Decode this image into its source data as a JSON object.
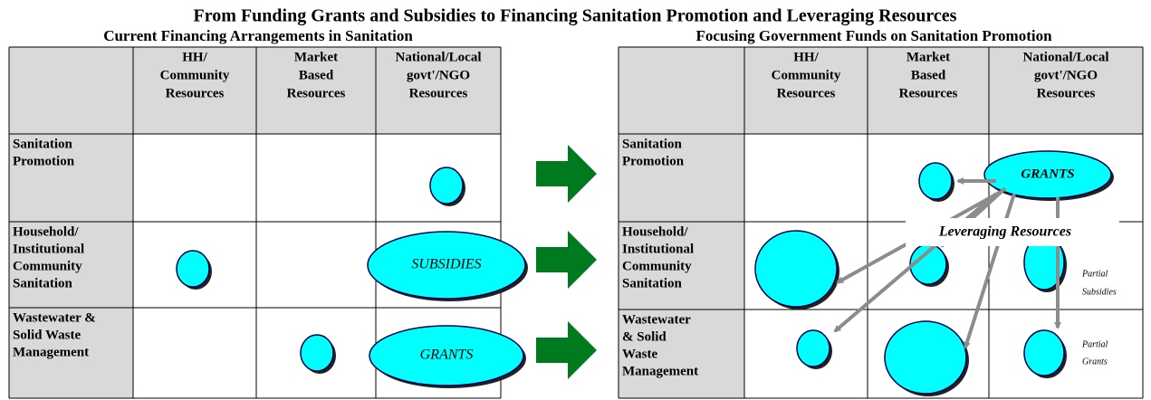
{
  "title": "From Funding Grants and Subsidies to Financing Sanitation Promotion and Leveraging Resources",
  "left": {
    "subtitle": "Current Financing Arrangements in Sanitation",
    "columns": [
      [
        "HH/",
        "Community",
        "Resources"
      ],
      [
        "Market",
        "Based",
        "Resources"
      ],
      [
        "National/Local",
        "govt'/NGO",
        "Resources"
      ]
    ],
    "rows": [
      [
        "Sanitation",
        "Promotion"
      ],
      [
        "Household/",
        "Institutional",
        "Community",
        "Sanitation"
      ],
      [
        "Wastewater &",
        "Solid Waste",
        "Management"
      ]
    ],
    "ovals": [
      "SUBSIDIES",
      "GRANTS"
    ]
  },
  "right": {
    "subtitle": "Focusing Government Funds on Sanitation Promotion",
    "columns": [
      [
        "HH/",
        "Community",
        "Resources"
      ],
      [
        "Market",
        "Based",
        "Resources"
      ],
      [
        "National/Local",
        "govt'/NGO",
        "Resources"
      ]
    ],
    "rows": [
      [
        "Sanitation",
        "Promotion"
      ],
      [
        "Household/",
        "Institutional",
        "Community",
        "Sanitation"
      ],
      [
        "Wastewater",
        "& Solid",
        "Waste",
        "Management"
      ]
    ],
    "grants": "GRANTS",
    "leveraging": "Leveraging Resources",
    "notes": [
      [
        "Partial",
        "Subsidies"
      ],
      [
        "Partial",
        "Grants"
      ]
    ]
  }
}
